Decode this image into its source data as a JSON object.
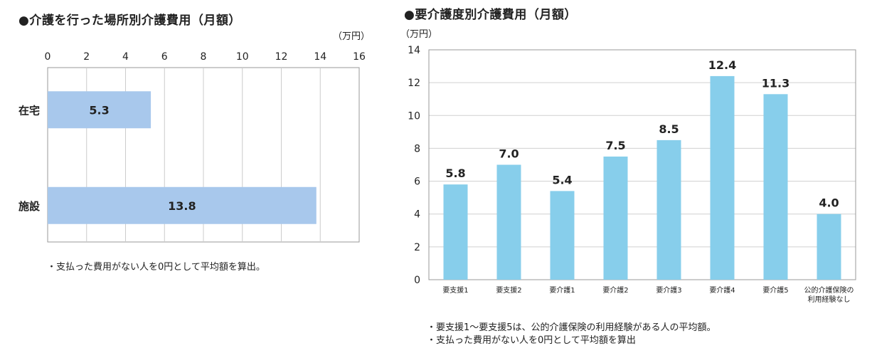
{
  "chart_data": [
    {
      "type": "bar",
      "orientation": "horizontal",
      "title": "●介護を行った場所別介護費用（月額）",
      "unit": "（万円）",
      "categories": [
        "在宅",
        "施設"
      ],
      "values": [
        5.3,
        13.8
      ],
      "value_labels": [
        "5.3",
        "13.8"
      ],
      "xlim": [
        0,
        16
      ],
      "ticks": [
        "0",
        "2",
        "4",
        "6",
        "8",
        "10",
        "12",
        "14",
        "16"
      ],
      "grid": true,
      "bar_color": "#a8c8ec",
      "notes": [
        "・支払った費用がない人を0円として平均額を算出。"
      ]
    },
    {
      "type": "bar",
      "orientation": "vertical",
      "title": "●要介護度別介護費用（月額）",
      "unit": "（万円）",
      "categories": [
        "要支援1",
        "要支援2",
        "要介護1",
        "要介護2",
        "要介護3",
        "要介護4",
        "要介護5",
        "公的介護保険の利用経験なし"
      ],
      "category_lines": [
        [
          "要支援1"
        ],
        [
          "要支援2"
        ],
        [
          "要介護1"
        ],
        [
          "要介護2"
        ],
        [
          "要介護3"
        ],
        [
          "要介護4"
        ],
        [
          "要介護5"
        ],
        [
          "公的介護保険の",
          "利用経験なし"
        ]
      ],
      "values": [
        5.8,
        7.0,
        5.4,
        7.5,
        8.5,
        12.4,
        11.3,
        4.0
      ],
      "value_labels": [
        "5.8",
        "7.0",
        "5.4",
        "7.5",
        "8.5",
        "12.4",
        "11.3",
        "4.0"
      ],
      "ylim": [
        0,
        14
      ],
      "ticks": [
        "0",
        "2",
        "4",
        "6",
        "8",
        "10",
        "12",
        "14"
      ],
      "grid": true,
      "bar_color": "#87ceeb",
      "notes": [
        "・要支援1～要支援5は、公的介護保険の利用経験がある人の平均額。",
        "・支払った費用がない人を0円として平均額を算出"
      ]
    }
  ]
}
